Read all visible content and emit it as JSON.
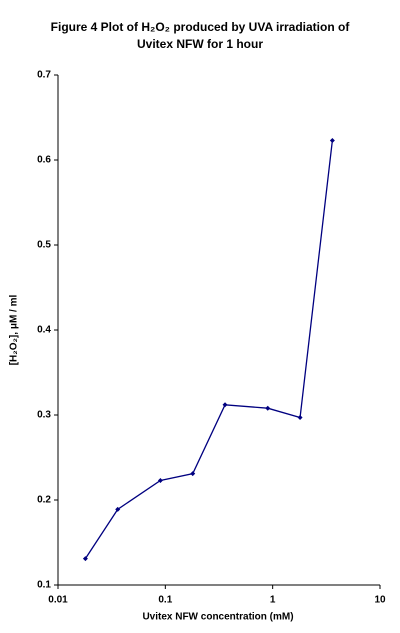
{
  "chart_data": {
    "type": "line",
    "title": [
      "Figure 4   Plot of H₂O₂ produced by UVA irradiation of",
      "Uvitex NFW for 1 hour"
    ],
    "x_label": "Uvitex NFW concentration (mM)",
    "y_label": "[H₂O₂], μM / ml",
    "x": [
      0.018,
      0.036,
      0.09,
      0.18,
      0.36,
      0.9,
      1.8,
      3.6
    ],
    "values": [
      0.131,
      0.189,
      0.223,
      0.231,
      0.312,
      0.308,
      0.297,
      0.623
    ],
    "color": "#000080",
    "x_scale": "log",
    "xlim": [
      0.01,
      10
    ],
    "xticks": [
      0.01,
      0.1,
      1,
      10
    ],
    "ylim": [
      0.1,
      0.7
    ],
    "yticks": [
      0.1,
      0.2,
      0.3,
      0.4,
      0.5,
      0.6,
      0.7
    ],
    "grid": false
  }
}
